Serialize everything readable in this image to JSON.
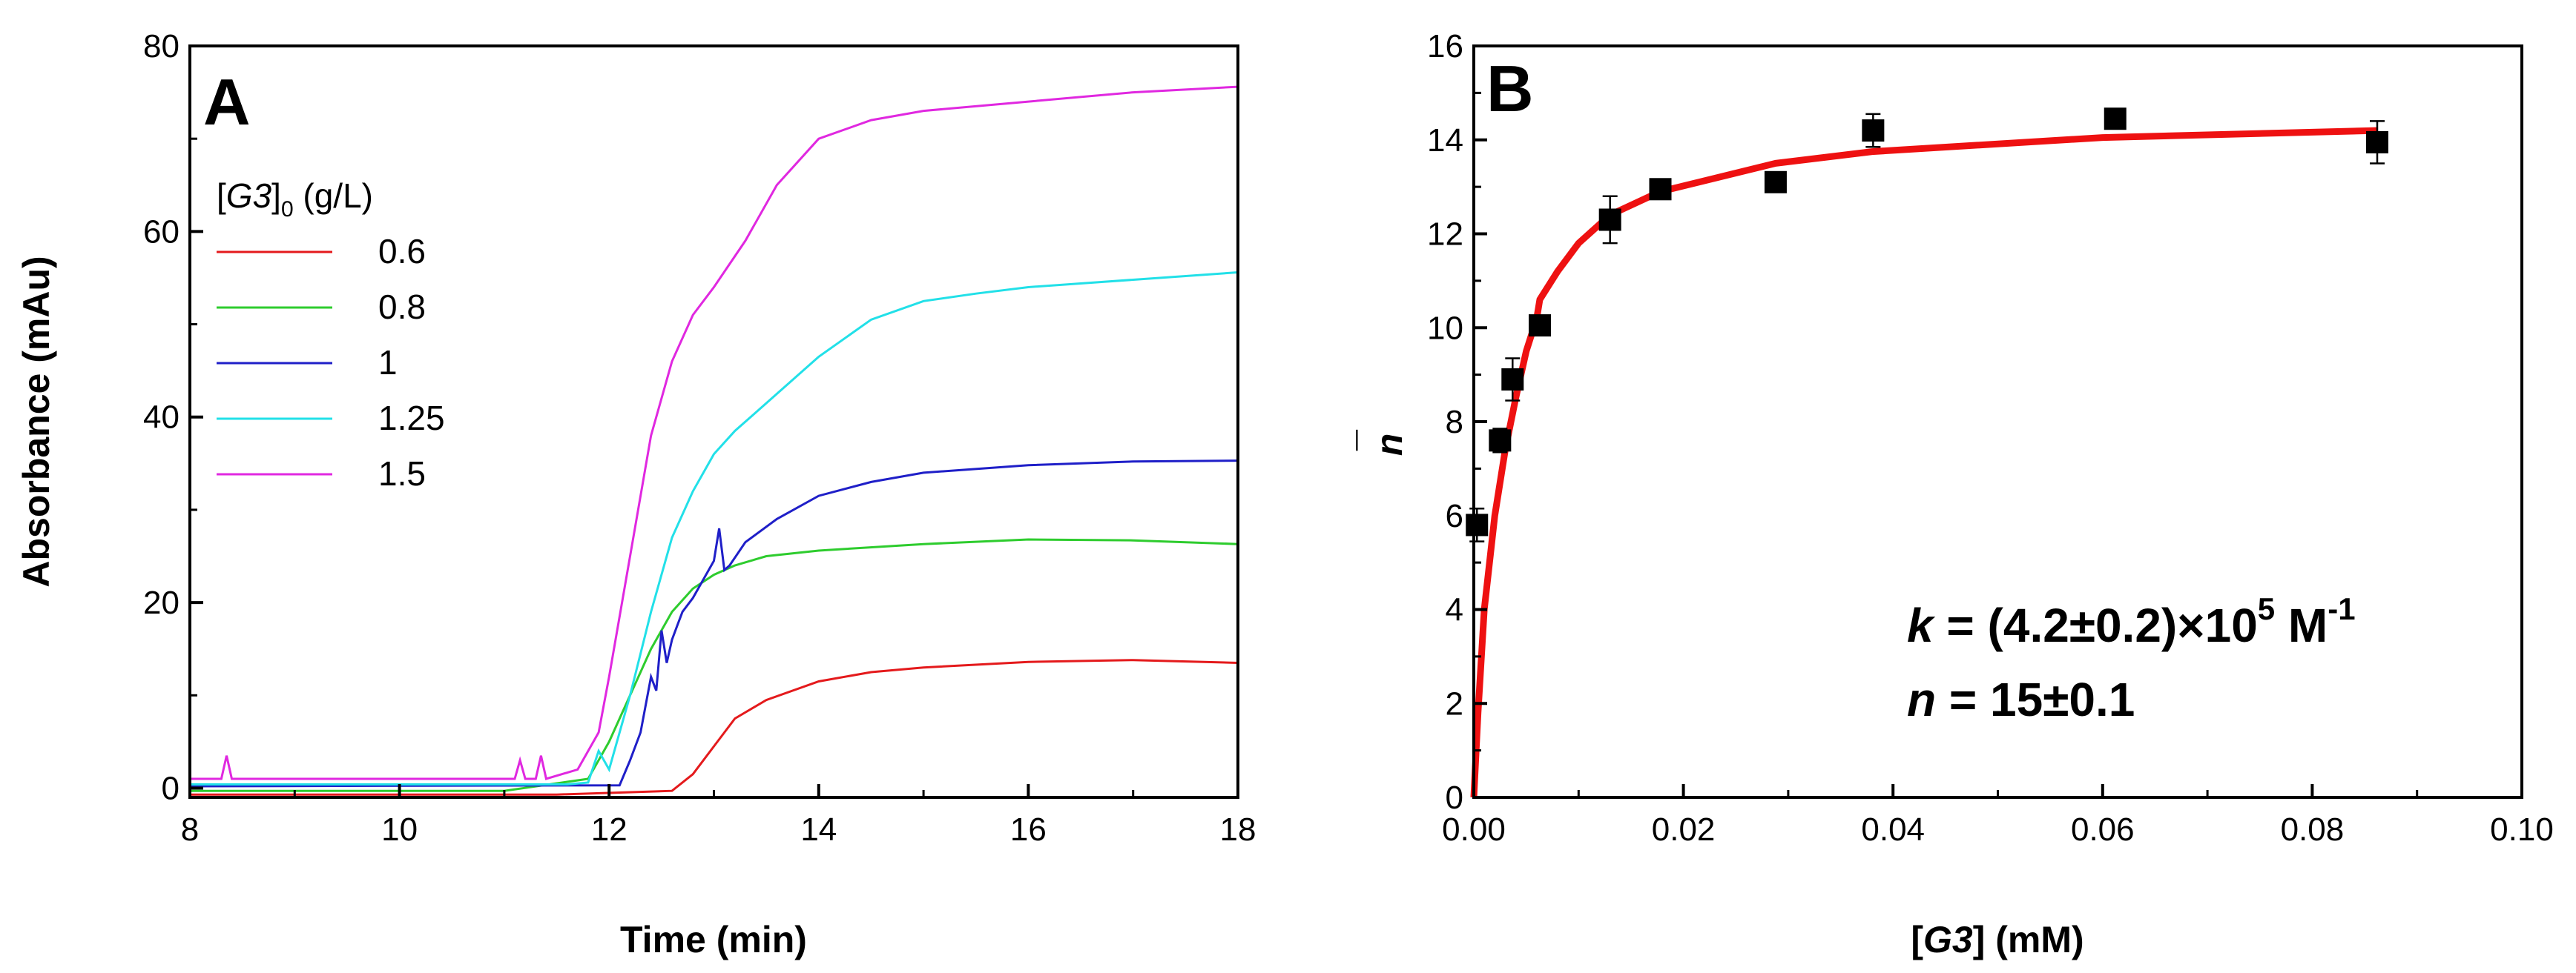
{
  "chart_data": [
    {
      "panel_label": "A",
      "type": "line",
      "xlabel": "Time (min)",
      "ylabel": "Absorbance (mAu)",
      "xlim": [
        8,
        18
      ],
      "ylim": [
        -1,
        80
      ],
      "xticks": [
        "8",
        "10",
        "12",
        "14",
        "16",
        "18"
      ],
      "yticks": [
        "0",
        "20",
        "40",
        "60",
        "80"
      ],
      "legend": {
        "title_prefix": "[",
        "title_italic": "G3",
        "title_bracket": "]",
        "title_sub": "0",
        "title_suffix": " (g/L)",
        "placement": "upper-left"
      },
      "series": [
        {
          "name": "0.6",
          "color": "#e41a1c",
          "x": [
            8,
            11.5,
            12.6,
            12.8,
            13.0,
            13.2,
            13.5,
            14.0,
            14.5,
            15.0,
            16.0,
            17.0,
            18.0
          ],
          "y": [
            -0.7,
            -0.7,
            -0.3,
            1.5,
            4.5,
            7.5,
            9.5,
            11.5,
            12.5,
            13.0,
            13.6,
            13.8,
            13.5
          ]
        },
        {
          "name": "0.8",
          "color": "#2ecc2e",
          "x": [
            8,
            11.0,
            11.8,
            12.0,
            12.2,
            12.4,
            12.6,
            12.8,
            13.0,
            13.2,
            13.5,
            14.0,
            15.0,
            16.0,
            17.0,
            18.0
          ],
          "y": [
            -0.3,
            -0.3,
            1.0,
            5.0,
            10.0,
            15.0,
            19.0,
            21.5,
            23.0,
            24.0,
            25.0,
            25.6,
            26.3,
            26.8,
            26.7,
            26.3
          ]
        },
        {
          "name": "1",
          "color": "#1f1fc8",
          "x": [
            8,
            12.1,
            12.2,
            12.3,
            12.4,
            12.45,
            12.5,
            12.55,
            12.6,
            12.65,
            12.7,
            12.8,
            12.9,
            13.0,
            13.05,
            13.1,
            13.15,
            13.3,
            13.6,
            14.0,
            14.5,
            15.0,
            16.0,
            17.0,
            18.0
          ],
          "y": [
            0.2,
            0.3,
            3.0,
            6.0,
            12.0,
            10.5,
            17.0,
            13.5,
            16.0,
            17.5,
            19.0,
            20.5,
            22.5,
            24.5,
            28.0,
            23.5,
            24.0,
            26.5,
            29.0,
            31.5,
            33.0,
            34.0,
            34.8,
            35.2,
            35.3
          ]
        },
        {
          "name": "1.25",
          "color": "#22e0e8",
          "x": [
            8,
            11.6,
            11.8,
            11.9,
            12.0,
            12.2,
            12.4,
            12.6,
            12.8,
            13.0,
            13.2,
            13.5,
            14.0,
            14.5,
            15.0,
            15.5,
            16.0,
            17.0,
            18.0
          ],
          "y": [
            0.4,
            0.4,
            0.6,
            4.0,
            2.0,
            10.0,
            19.0,
            27.0,
            32.0,
            36.0,
            38.5,
            41.5,
            46.5,
            50.5,
            52.5,
            53.3,
            54.0,
            54.8,
            55.6
          ]
        },
        {
          "name": "1.5",
          "color": "#e028e0",
          "x": [
            8,
            8.3,
            8.35,
            8.4,
            11.1,
            11.15,
            11.2,
            11.3,
            11.35,
            11.4,
            11.7,
            11.9,
            12.0,
            12.2,
            12.4,
            12.6,
            12.8,
            13.0,
            13.3,
            13.6,
            14.0,
            14.5,
            15.0,
            16.0,
            17.0,
            18.0
          ],
          "y": [
            1.0,
            1.0,
            3.5,
            1.0,
            1.0,
            3.0,
            1.0,
            1.0,
            3.5,
            1.0,
            2.0,
            6.0,
            12.0,
            25.0,
            38.0,
            46.0,
            51.0,
            54.0,
            59.0,
            65.0,
            70.0,
            72.0,
            73.0,
            74.0,
            75.0,
            75.6
          ]
        }
      ]
    },
    {
      "panel_label": "B",
      "type": "scatter",
      "xlabel_prefix": "[",
      "xlabel_italic": "G3",
      "xlabel_suffix": "] (mM)",
      "ylabel": "n",
      "ylabel_bar": "¯",
      "xlim": [
        0,
        0.1
      ],
      "ylim": [
        0,
        16
      ],
      "xticks": [
        "0.00",
        "0.02",
        "0.04",
        "0.06",
        "0.08",
        "0.10"
      ],
      "yticks": [
        "0",
        "2",
        "4",
        "6",
        "8",
        "10",
        "12",
        "14",
        "16"
      ],
      "points": {
        "x": [
          0.0003,
          0.0025,
          0.0037,
          0.0063,
          0.013,
          0.0178,
          0.0288,
          0.0381,
          0.0612,
          0.0862
        ],
        "y": [
          5.8,
          7.6,
          8.9,
          10.05,
          12.3,
          12.95,
          13.1,
          14.2,
          14.45,
          13.95
        ],
        "err": [
          0.35,
          0.25,
          0.45,
          0.15,
          0.5,
          0.15,
          0.1,
          0.35,
          0.1,
          0.45
        ],
        "color": "#000000"
      },
      "fit": {
        "color": "#ee1111",
        "x": [
          0,
          0.0004,
          0.001,
          0.002,
          0.003,
          0.004,
          0.005,
          0.006,
          0.0063,
          0.008,
          0.01,
          0.013,
          0.0178,
          0.0288,
          0.038,
          0.06,
          0.0862
        ],
        "y": [
          0,
          1.8,
          4.0,
          6.0,
          7.4,
          8.5,
          9.5,
          10.2,
          10.6,
          11.2,
          11.8,
          12.4,
          12.9,
          13.5,
          13.75,
          14.05,
          14.2
        ]
      },
      "annotation": {
        "line1_var": "k",
        "line1_text": " = (4.2±0.2)×10",
        "line1_sup_exp": "5",
        "line1_unit": " M",
        "line1_sup_unit": "-1",
        "line2_var": "n",
        "line2_text": " = 15±0.1"
      }
    }
  ]
}
